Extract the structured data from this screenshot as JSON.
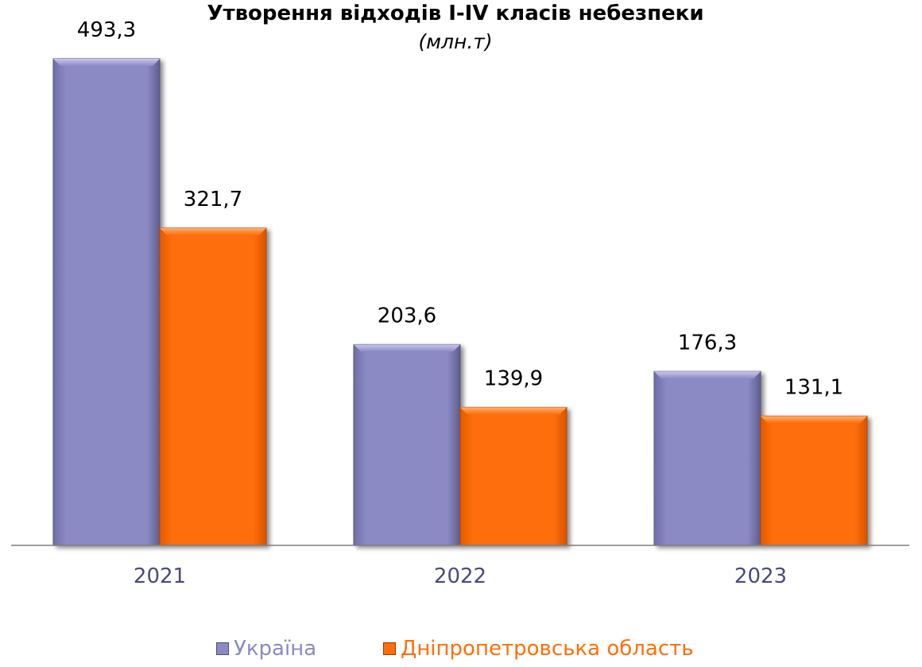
{
  "chart_data": {
    "type": "bar",
    "title": "Утворення відходів I-IV класів небезпеки",
    "subtitle": "(млн.т)",
    "categories": [
      "2021",
      "2022",
      "2023"
    ],
    "series": [
      {
        "name": "Україна",
        "values": [
          493.3,
          203.6,
          176.3
        ],
        "labels": [
          "493,3",
          "203,6",
          "176,3"
        ],
        "color": "#8b8ac4"
      },
      {
        "name": "Дніпропетровська область",
        "values": [
          321.7,
          139.9,
          131.1
        ],
        "labels": [
          "321,7",
          "139,9",
          "131,1"
        ],
        "color": "#ff6e0a"
      }
    ],
    "ylim": [
      0,
      540
    ],
    "grid": false,
    "legend": "bottom",
    "tick_label_color": "#4a4a7a"
  }
}
